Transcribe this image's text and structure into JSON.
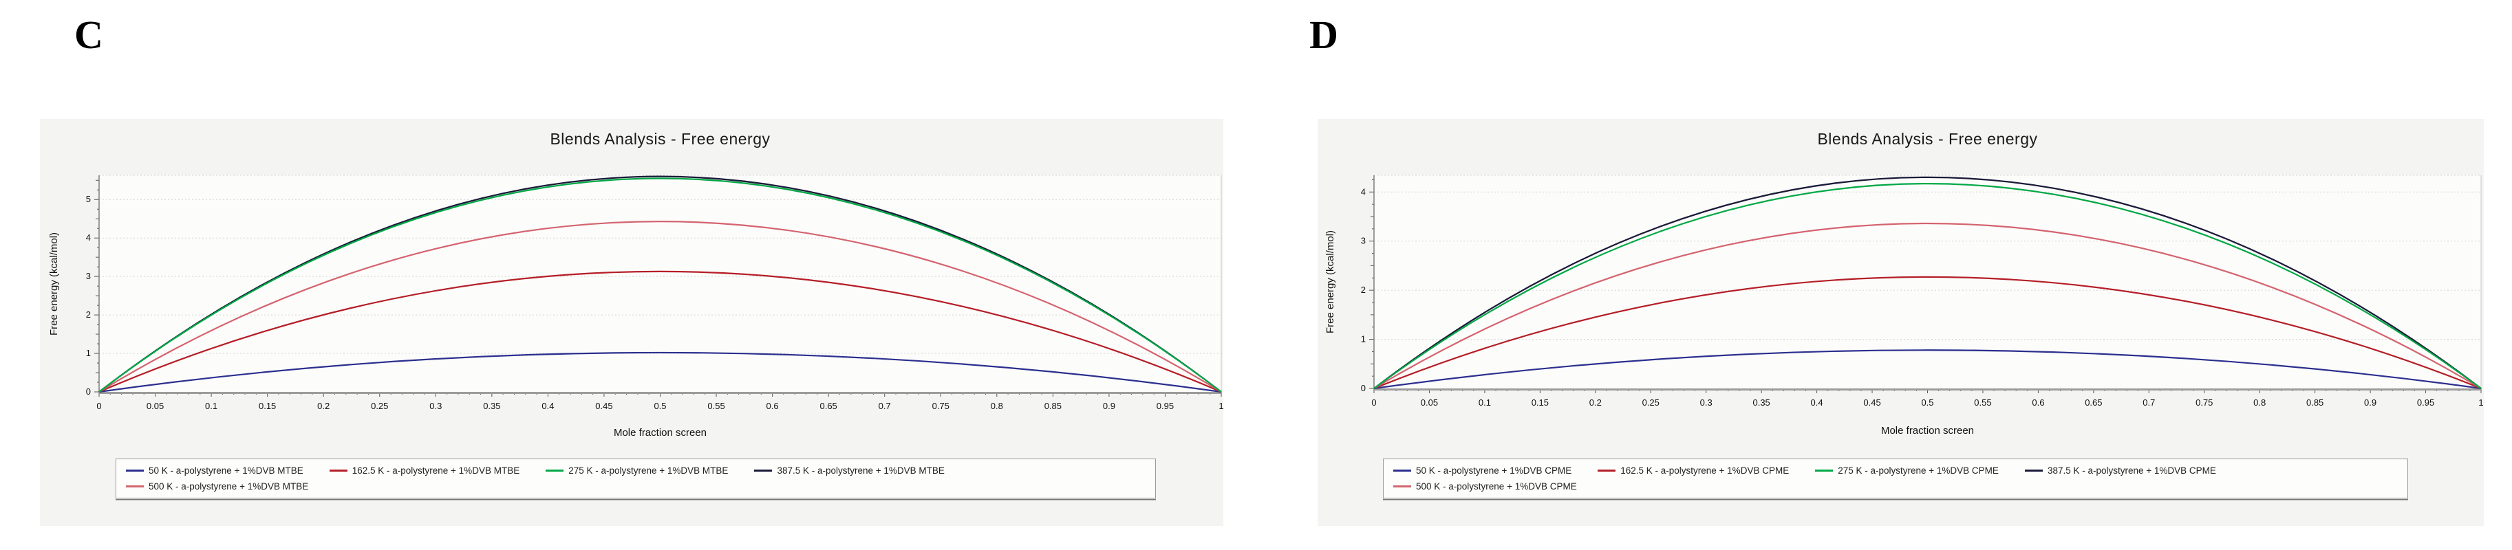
{
  "panel_labels": [
    "C",
    "D"
  ],
  "colors": {
    "t50": "#2b2f8e",
    "t162": "#b51e27",
    "t275": "#00a845",
    "t387": "#1a1a38",
    "t500": "#d4646f",
    "panel_background": "#f4f4f2",
    "plot_background": "#fcfcfb",
    "gridline": "#d4d4d0"
  },
  "chart_data": [
    {
      "type": "line",
      "panel_label": "C",
      "title": "Blends Analysis - Free energy",
      "xlabel": "Mole fraction screen",
      "ylabel": "Free energy (kcal/mol)",
      "xlim": [
        0,
        1
      ],
      "ylim": [
        0,
        5.63
      ],
      "grid": "horizontal-dotted",
      "legend_position": "bottom",
      "x_tick_labels": [
        "0",
        "0.05",
        "0.1",
        "0.15",
        "0.2",
        "0.25",
        "0.3",
        "0.35",
        "0.4",
        "0.45",
        "0.5",
        "0.55",
        "0.6",
        "0.65",
        "0.7",
        "0.75",
        "0.8",
        "0.85",
        "0.9",
        "0.95",
        "1"
      ],
      "y_ticks": [
        "0",
        "1",
        "2",
        "3",
        "4",
        "5"
      ],
      "x_samples": [
        0,
        0.1,
        0.2,
        0.3,
        0.4,
        0.5,
        0.6,
        0.7,
        0.8,
        0.9,
        1.0
      ],
      "series": [
        {
          "name": "50 K - a-polystyrene + 1%DVB MTBE",
          "color": "#2b2f8e",
          "peak": 1.02,
          "values": [
            0,
            0.37,
            0.65,
            0.86,
            0.98,
            1.02,
            0.98,
            0.86,
            0.65,
            0.37,
            0
          ]
        },
        {
          "name": "162.5 K - a-polystyrene + 1%DVB MTBE",
          "color": "#b51e27",
          "peak": 3.13,
          "values": [
            0,
            1.13,
            2.0,
            2.63,
            3.0,
            3.13,
            3.0,
            2.63,
            2.0,
            1.13,
            0
          ]
        },
        {
          "name": "275 K - a-polystyrene + 1%DVB MTBE",
          "color": "#00a845",
          "peak": 5.55,
          "values": [
            0,
            2.0,
            3.55,
            4.66,
            5.33,
            5.55,
            5.33,
            4.66,
            3.55,
            2.0,
            0
          ]
        },
        {
          "name": "387.5 K - a-polystyrene + 1%DVB MTBE",
          "color": "#1a1a38",
          "peak": 5.6,
          "values": [
            0,
            2.02,
            3.58,
            4.7,
            5.38,
            5.6,
            5.38,
            4.7,
            3.58,
            2.02,
            0
          ]
        },
        {
          "name": "500 K - a-polystyrene + 1%DVB MTBE",
          "color": "#d4646f",
          "peak": 4.43,
          "values": [
            0,
            1.59,
            2.84,
            3.72,
            4.25,
            4.43,
            4.25,
            3.72,
            2.84,
            1.59,
            0
          ]
        }
      ],
      "draw_order": [
        0,
        1,
        4,
        3,
        2
      ]
    },
    {
      "type": "line",
      "panel_label": "D",
      "title": "Blends Analysis - Free energy",
      "xlabel": "Mole fraction screen",
      "ylabel": "Free energy (kcal/mol)",
      "xlim": [
        0,
        1
      ],
      "ylim": [
        0,
        4.34
      ],
      "grid": "horizontal-dotted",
      "legend_position": "bottom",
      "x_tick_labels": [
        "0",
        "0.05",
        "0.1",
        "0.15",
        "0.2",
        "0.25",
        "0.3",
        "0.35",
        "0.4",
        "0.45",
        "0.5",
        "0.55",
        "0.6",
        "0.65",
        "0.7",
        "0.75",
        "0.8",
        "0.85",
        "0.9",
        "0.95",
        "1"
      ],
      "y_ticks": [
        "0",
        "1",
        "2",
        "3",
        "4"
      ],
      "x_samples": [
        0,
        0.1,
        0.2,
        0.3,
        0.4,
        0.5,
        0.6,
        0.7,
        0.8,
        0.9,
        1.0
      ],
      "series": [
        {
          "name": "50 K - a-polystyrene + 1%DVB CPME",
          "color": "#2b2f8e",
          "peak": 0.78,
          "values": [
            0,
            0.28,
            0.5,
            0.66,
            0.75,
            0.78,
            0.75,
            0.66,
            0.5,
            0.28,
            0
          ]
        },
        {
          "name": "162.5 K - a-polystyrene + 1%DVB CPME",
          "color": "#b51e27",
          "peak": 2.27,
          "values": [
            0,
            0.82,
            1.45,
            1.91,
            2.18,
            2.27,
            2.18,
            1.91,
            1.45,
            0.82,
            0
          ]
        },
        {
          "name": "275 K - a-polystyrene + 1%DVB CPME",
          "color": "#00a845",
          "peak": 4.17,
          "values": [
            0,
            1.5,
            2.67,
            3.5,
            4.0,
            4.17,
            4.0,
            3.5,
            2.67,
            1.5,
            0
          ]
        },
        {
          "name": "387.5 K - a-polystyrene + 1%DVB CPME",
          "color": "#1a1a38",
          "peak": 4.3,
          "values": [
            0,
            1.55,
            2.75,
            3.61,
            4.13,
            4.3,
            4.13,
            3.61,
            2.75,
            1.55,
            0
          ]
        },
        {
          "name": "500 K - a-polystyrene + 1%DVB CPME",
          "color": "#d4646f",
          "peak": 3.36,
          "values": [
            0,
            1.21,
            2.15,
            2.82,
            3.23,
            3.36,
            3.23,
            2.82,
            2.15,
            1.21,
            0
          ]
        }
      ],
      "draw_order": [
        0,
        1,
        4,
        3,
        2
      ]
    }
  ]
}
